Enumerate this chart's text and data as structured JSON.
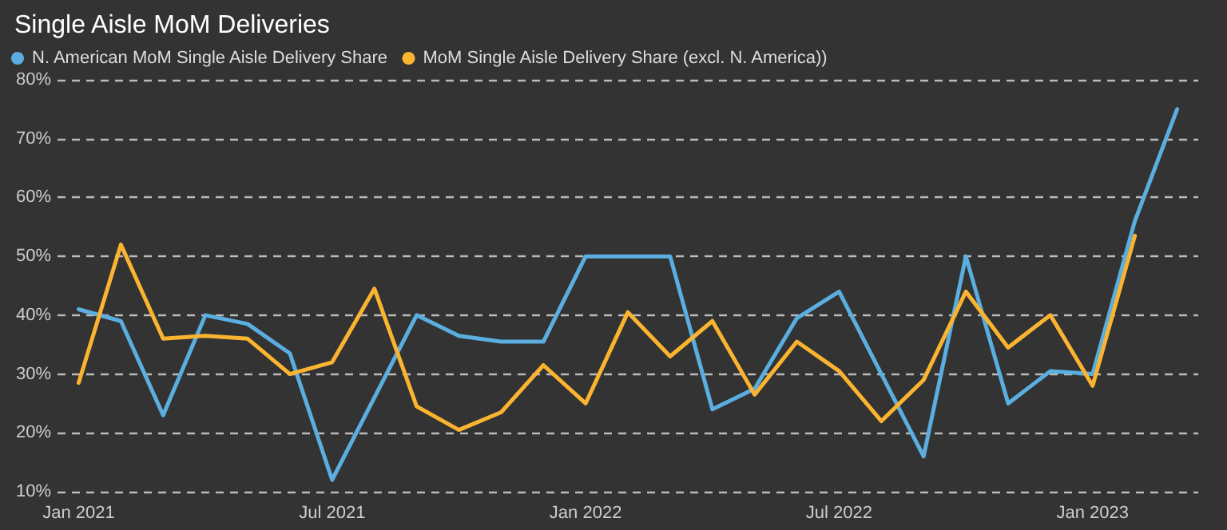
{
  "chart_data": {
    "type": "line",
    "title": "Single Aisle MoM Deliveries",
    "categories": [
      "Jan 2021",
      null,
      null,
      null,
      null,
      null,
      "Jul 2021",
      null,
      null,
      null,
      null,
      null,
      "Jan 2022",
      null,
      null,
      null,
      null,
      null,
      "Jul 2022",
      null,
      null,
      null,
      null,
      null,
      "Jan 2023",
      null,
      null
    ],
    "series": [
      {
        "name": "N. American MoM Single Aisle Delivery Share",
        "color": "#5aaee0",
        "values": [
          41,
          39,
          23,
          40,
          38.5,
          33.5,
          12,
          26,
          40,
          36.5,
          35.5,
          35.5,
          50,
          50,
          50,
          24,
          27.5,
          39.5,
          44,
          30,
          16,
          50,
          25,
          30.5,
          30,
          56,
          75
        ]
      },
      {
        "name": "MoM Single Aisle Delivery Share (excl. N. America))",
        "color": "#fbb430",
        "values": [
          28.5,
          52,
          36,
          36.5,
          36,
          30,
          32,
          44.5,
          24.5,
          20.5,
          23.5,
          31.5,
          25,
          40.5,
          33,
          39,
          26.5,
          35.5,
          30.5,
          22,
          29,
          44,
          34.5,
          40,
          28,
          53.5,
          null
        ]
      }
    ],
    "ylim": [
      10,
      80
    ],
    "yticks": [
      {
        "value": 10,
        "label": "10%"
      },
      {
        "value": 20,
        "label": "20%"
      },
      {
        "value": 30,
        "label": "30%"
      },
      {
        "value": 40,
        "label": "40%"
      },
      {
        "value": 50,
        "label": "50%"
      },
      {
        "value": 60,
        "label": "60%"
      },
      {
        "value": 70,
        "label": "70%"
      },
      {
        "value": 80,
        "label": "80%"
      }
    ],
    "grid": "y",
    "legend": "top left",
    "marker": "none",
    "line_style": "solid"
  }
}
